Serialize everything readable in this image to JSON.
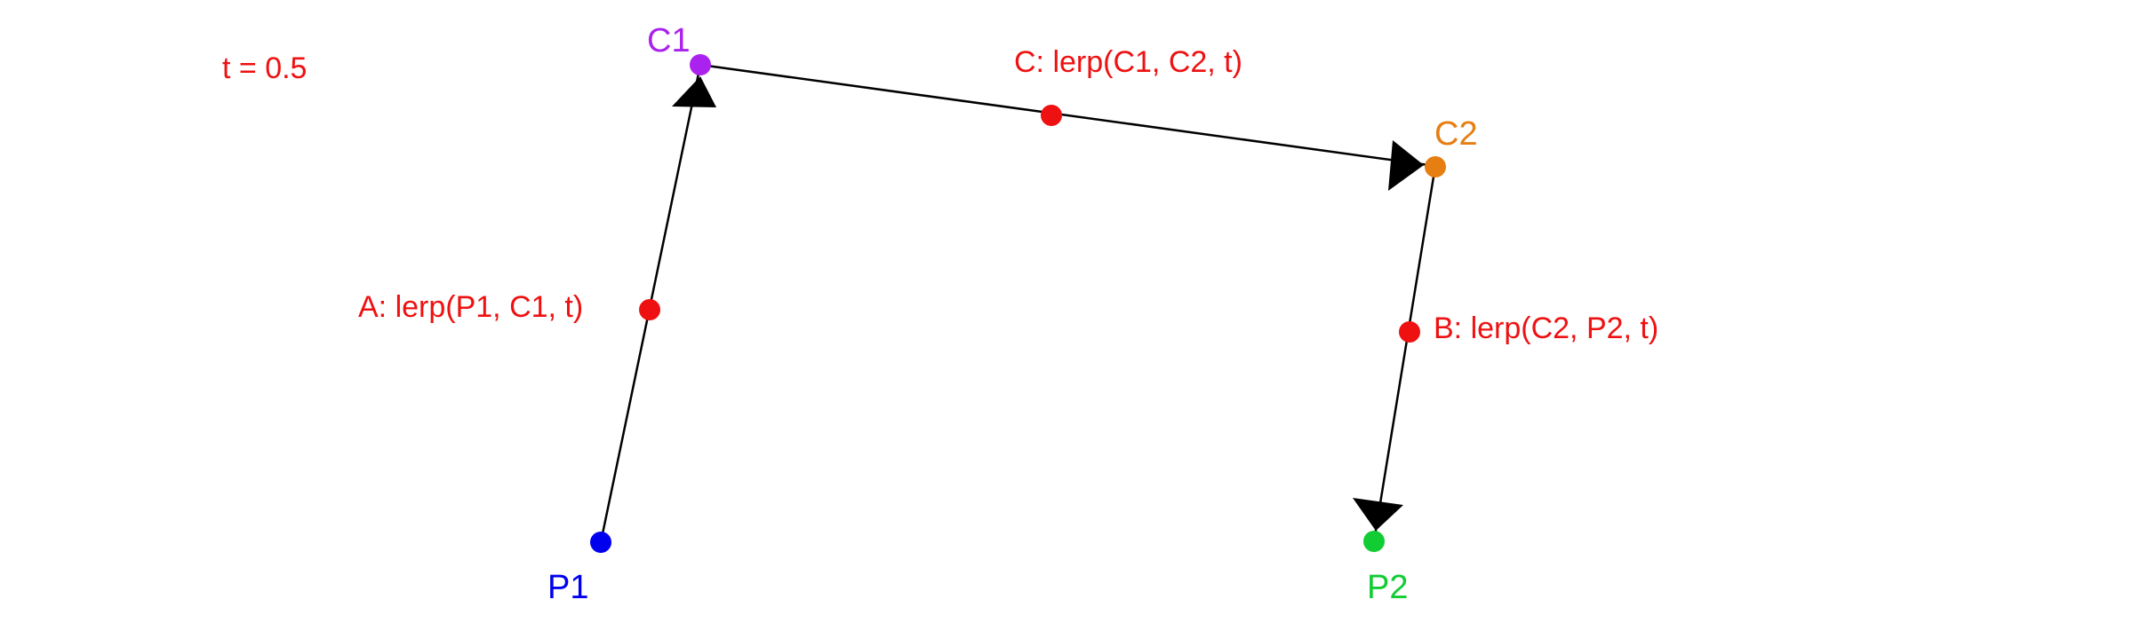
{
  "t_label": "t = 0.5",
  "colors": {
    "p1": "#0000ee",
    "c1": "#aa22ee",
    "c2": "#e67e12",
    "p2": "#11cc33",
    "interp": "#ee1111",
    "line": "#000000"
  },
  "points": {
    "p1": {
      "label": "P1"
    },
    "c1": {
      "label": "C1"
    },
    "c2": {
      "label": "C2"
    },
    "p2": {
      "label": "P2"
    }
  },
  "interpolated": {
    "a": {
      "label": "A: lerp(P1, C1, t)"
    },
    "b": {
      "label": "B: lerp(C2, P2, t)"
    },
    "c": {
      "label": "C: lerp(C1, C2, t)"
    }
  }
}
